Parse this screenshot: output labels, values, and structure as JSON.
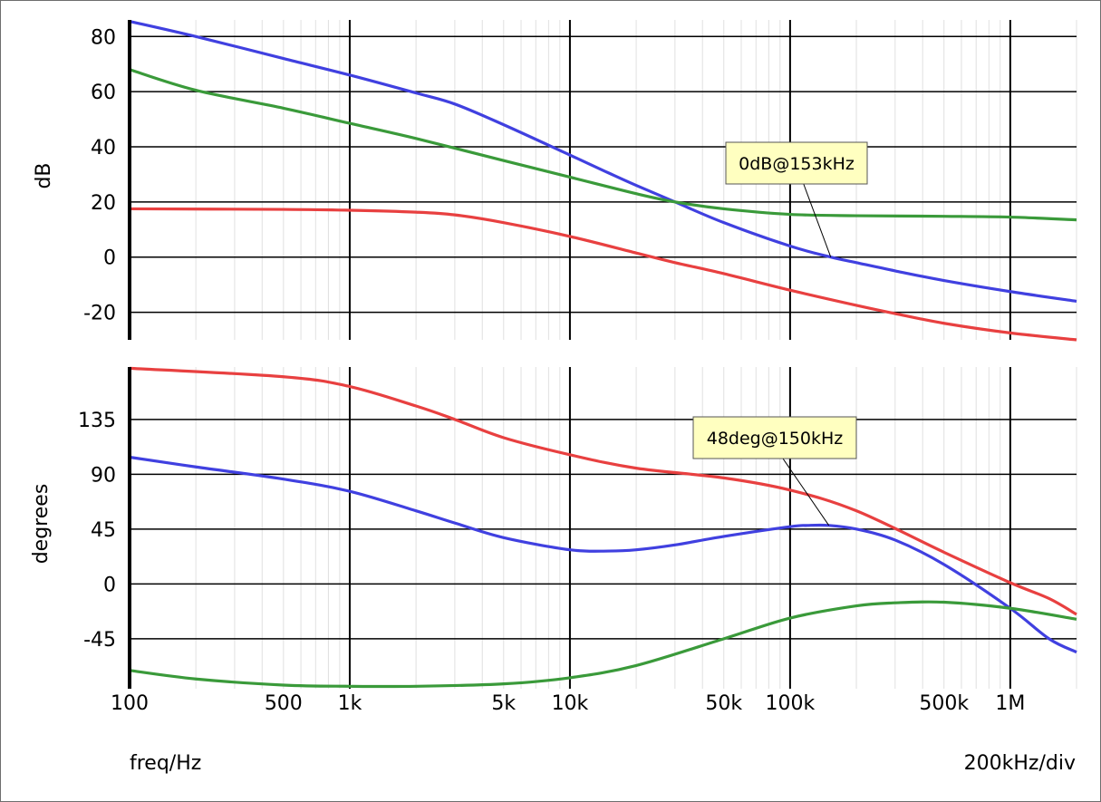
{
  "colors": {
    "blue": "#4040e0",
    "green": "#3a9a3a",
    "red": "#e84040",
    "annotation_bg": "#ffffc0",
    "minor_grid": "#e0e0e0"
  },
  "chart_data": [
    {
      "type": "line",
      "panel": "magnitude",
      "ylabel": "dB",
      "xscale": "log",
      "xlim": [
        100,
        2000000
      ],
      "ylim": [
        -30,
        86
      ],
      "yticks": [
        -20,
        0,
        20,
        40,
        60,
        80
      ],
      "ytick_labels": [
        "-20",
        "0",
        "20",
        "40",
        "60",
        "80"
      ],
      "series": [
        {
          "name": "blue",
          "color": "#4040e0",
          "x": [
            100,
            200,
            500,
            1000,
            2000,
            3000,
            5000,
            10000,
            15000,
            20000,
            30000,
            50000,
            100000,
            153000,
            200000,
            300000,
            500000,
            1000000,
            2000000
          ],
          "y": [
            85.5,
            80,
            72,
            66,
            59.5,
            55.5,
            48,
            37,
            30.5,
            26,
            20,
            12.5,
            4,
            0,
            -2,
            -5,
            -8.5,
            -12.5,
            -16
          ]
        },
        {
          "name": "green",
          "color": "#3a9a3a",
          "x": [
            100,
            200,
            500,
            1000,
            2000,
            5000,
            10000,
            20000,
            30000,
            50000,
            100000,
            200000,
            500000,
            1000000,
            2000000
          ],
          "y": [
            68,
            60.5,
            54,
            48.5,
            43,
            35,
            29,
            23,
            20,
            17.5,
            15.5,
            15,
            14.8,
            14.5,
            13.5
          ]
        },
        {
          "name": "red",
          "color": "#e84040",
          "x": [
            100,
            500,
            1000,
            2000,
            3000,
            5000,
            10000,
            20000,
            30000,
            50000,
            100000,
            200000,
            300000,
            500000,
            1000000,
            2000000
          ],
          "y": [
            17.5,
            17.3,
            17,
            16.3,
            15.3,
            12.5,
            7.5,
            1.5,
            -2,
            -6,
            -12,
            -17.5,
            -20.5,
            -24,
            -27.5,
            -30
          ]
        }
      ],
      "annotation": {
        "text": "0dB@153kHz",
        "x": 153000,
        "y": 0,
        "series": "blue"
      }
    },
    {
      "type": "line",
      "panel": "phase",
      "ylabel": "degrees",
      "xscale": "log",
      "xlim": [
        100,
        2000000
      ],
      "ylim": [
        -86,
        178
      ],
      "yticks": [
        -45,
        0,
        45,
        90,
        135
      ],
      "ytick_labels": [
        "-45",
        "0",
        "45",
        "90",
        "135"
      ],
      "series": [
        {
          "name": "red",
          "color": "#e84040",
          "x": [
            100,
            500,
            1000,
            2000,
            3000,
            5000,
            10000,
            20000,
            50000,
            100000,
            200000,
            500000,
            1000000,
            1500000,
            2000000
          ],
          "y": [
            177,
            170,
            162,
            146,
            135,
            120,
            106,
            95,
            87,
            77,
            60,
            26,
            1,
            -12,
            -25
          ]
        },
        {
          "name": "blue",
          "color": "#4040e0",
          "x": [
            100,
            200,
            500,
            1000,
            2000,
            3000,
            5000,
            10000,
            15000,
            20000,
            30000,
            50000,
            100000,
            120000,
            150000,
            200000,
            300000,
            500000,
            1000000,
            1500000,
            2000000
          ],
          "y": [
            104,
            96,
            86,
            76,
            60,
            50,
            38,
            28,
            27,
            28,
            32,
            39,
            47,
            48,
            48,
            45,
            36,
            16,
            -20,
            -45,
            -56
          ]
        },
        {
          "name": "green",
          "color": "#3a9a3a",
          "x": [
            100,
            200,
            500,
            1000,
            2000,
            5000,
            10000,
            20000,
            50000,
            100000,
            200000,
            300000,
            500000,
            1000000,
            2000000
          ],
          "y": [
            -71,
            -78,
            -83,
            -84,
            -84,
            -82,
            -77,
            -67,
            -45,
            -28,
            -18,
            -15.5,
            -15,
            -20,
            -29
          ]
        }
      ],
      "annotation": {
        "text": "48deg@150kHz",
        "x": 150000,
        "y": 48,
        "series": "blue"
      }
    }
  ],
  "x_axis": {
    "tick_values": [
      100,
      500,
      1000,
      5000,
      10000,
      50000,
      100000,
      500000,
      1000000
    ],
    "tick_labels": [
      "100",
      "500",
      "1k",
      "5k",
      "10k",
      "50k",
      "100k",
      "500k",
      "1M"
    ],
    "xlabel": "freq/Hz",
    "scale_note": "200kHz/div"
  }
}
